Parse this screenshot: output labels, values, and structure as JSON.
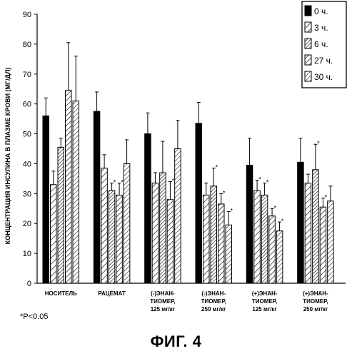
{
  "chart_data": {
    "type": "bar",
    "ylabel": "КОНЦЕНТРАЦИЯ ИНСУЛИНА В ПЛАЗМЕ КРОВИ (МГ/ДЛ)",
    "ylim": [
      0,
      90
    ],
    "yticks": [
      "0",
      "10",
      "20",
      "30",
      "40",
      "50",
      "60",
      "70",
      "80",
      "90"
    ],
    "legend_position": "top-right",
    "categories": [
      [
        "НОСИТЕЛЬ"
      ],
      [
        "РАЦЕМАТ"
      ],
      [
        "(-)ЭНАН-",
        "ТИОМЕР,",
        "125 мг/кг"
      ],
      [
        "(-)ЭНАН-",
        "ТИОМЕР,",
        "250 мг/кг"
      ],
      [
        "(+)ЭНАН-",
        "ТИОМЕР,",
        "125 мг/кг"
      ],
      [
        "(+)ЭНАН-",
        "ТИОМЕР,",
        "250 мг/кг"
      ]
    ],
    "series": [
      {
        "name": "0 ч.",
        "pattern": "solid",
        "values": [
          56,
          57.5,
          50,
          53.5,
          39.5,
          40.5
        ],
        "errors": [
          6,
          6.5,
          7,
          7,
          9,
          8
        ]
      },
      {
        "name": "3 ч.",
        "pattern": "diag-sparse",
        "values": [
          33,
          38.5,
          33.5,
          29.5,
          31,
          33.5
        ],
        "errors": [
          4.5,
          4.5,
          3.5,
          4,
          3.5,
          3
        ]
      },
      {
        "name": "6 ч.",
        "pattern": "diag-dense",
        "values": [
          45.5,
          31,
          37,
          32.5,
          29.5,
          38
        ],
        "errors": [
          3,
          2.5,
          10.5,
          6,
          4,
          8.5
        ]
      },
      {
        "name": "27 ч.",
        "pattern": "diag-medium",
        "values": [
          64.5,
          29.5,
          28,
          26.5,
          22.5,
          25.5
        ],
        "errors": [
          16,
          4,
          6,
          3.5,
          2.5,
          3
        ]
      },
      {
        "name": "30 ч.",
        "pattern": "diag-light",
        "values": [
          61,
          40,
          45,
          19.5,
          17.5,
          27.5
        ],
        "errors": [
          15,
          8,
          9.5,
          4.5,
          3,
          5
        ]
      }
    ],
    "significance": [
      [
        false,
        false,
        false,
        false,
        false
      ],
      [
        false,
        false,
        true,
        true,
        false
      ],
      [
        false,
        false,
        false,
        true,
        false
      ],
      [
        false,
        false,
        true,
        true,
        true
      ],
      [
        false,
        true,
        true,
        true,
        true
      ],
      [
        false,
        false,
        true,
        true,
        false
      ]
    ],
    "significance_marker": "*",
    "footnote": "*P<0.05"
  },
  "figure_caption": "ФИГ. 4"
}
